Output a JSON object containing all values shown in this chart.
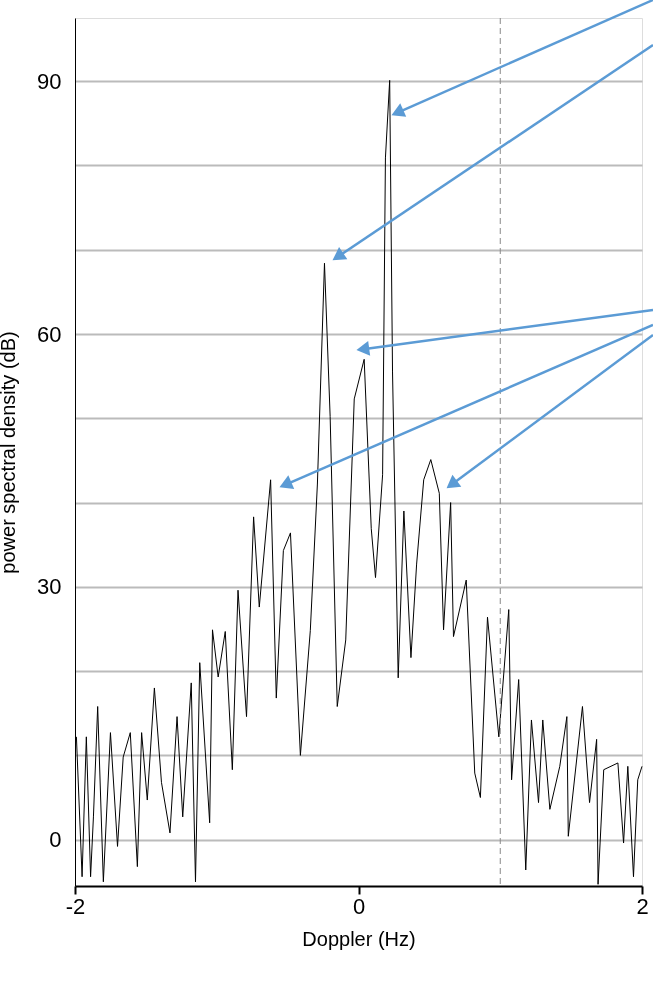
{
  "chart_data": {
    "type": "line",
    "xlabel": "Doppler (Hz)",
    "ylabel": "power spectral density (dB)",
    "xlim": [
      -2,
      2
    ],
    "xticks": [
      -2,
      0,
      2
    ],
    "ylim": [
      -5.5,
      97.5
    ],
    "yticks": [
      0,
      {
        "value": 10,
        "label": null
      },
      {
        "value": 20,
        "label": null
      },
      30,
      {
        "value": 40,
        "label": null
      },
      {
        "value": 50,
        "label": null
      },
      60,
      {
        "value": 70,
        "label": null
      },
      {
        "value": 80,
        "label": null
      },
      90
    ],
    "grid": "y",
    "marker": "none",
    "line_style": "solid",
    "ref_lines": [
      {
        "axis": "x",
        "value": 1,
        "color": "#888888",
        "line_style": "dashed"
      }
    ],
    "series": [
      {
        "color": "#000000",
        "x": [
          -1.99,
          -1.95,
          -1.92,
          -1.89,
          -1.87,
          -1.84,
          -1.8,
          -1.75,
          -1.7,
          -1.66,
          -1.61,
          -1.56,
          -1.53,
          -1.49,
          -1.44,
          -1.39,
          -1.33,
          -1.28,
          -1.24,
          -1.18,
          -1.15,
          -1.12,
          -1.05,
          -1.03,
          -0.99,
          -0.94,
          -0.89,
          -0.85,
          -0.79,
          -0.74,
          -0.7,
          -0.62,
          -0.58,
          -0.53,
          -0.48,
          -0.41,
          -0.34,
          -0.29,
          -0.24,
          -0.2,
          -0.15,
          -0.09,
          -0.03,
          0.04,
          0.09,
          0.12,
          0.17,
          0.19,
          0.22,
          0.24,
          0.28,
          0.32,
          0.37,
          0.41,
          0.46,
          0.51,
          0.57,
          0.6,
          0.65,
          0.67,
          0.76,
          0.82,
          0.86,
          0.91,
          0.99,
          1.06,
          1.08,
          1.13,
          1.18,
          1.22,
          1.27,
          1.3,
          1.35,
          1.42,
          1.47,
          1.48,
          1.58,
          1.63,
          1.68,
          1.69,
          1.73,
          1.83,
          1.87,
          1.9,
          1.94,
          1.97,
          2.0
        ],
        "values": [
          12.2,
          -4.4,
          12.2,
          -4.4,
          2.7,
          15.8,
          -5.0,
          12.7,
          -0.8,
          9.8,
          12.7,
          -3.2,
          12.7,
          4.7,
          18.0,
          6.8,
          0.8,
          14.6,
          2.7,
          18.6,
          -5.0,
          21.0,
          2.0,
          24.9,
          19.3,
          24.7,
          8.3,
          29.6,
          14.6,
          38.3,
          27.6,
          42.7,
          16.8,
          34.3,
          36.4,
          10.0,
          24.8,
          42.2,
          68.4,
          50.2,
          15.8,
          23.7,
          52.3,
          57.0,
          36.9,
          31.1,
          43.3,
          80.9,
          90.1,
          55.5,
          19.2,
          39.0,
          21.6,
          32.7,
          42.7,
          45.1,
          41.1,
          24.9,
          40.0,
          24.1,
          30.8,
          7.9,
          5.0,
          26.4,
          12.2,
          27.3,
          7.1,
          19.0,
          -3.6,
          14.2,
          4.4,
          14.2,
          3.6,
          8.7,
          14.6,
          0.4,
          15.8,
          4.4,
          11.9,
          -5.3,
          8.3,
          9.1,
          -0.4,
          8.7,
          -4.4,
          7.1,
          8.7
        ]
      }
    ]
  }
}
